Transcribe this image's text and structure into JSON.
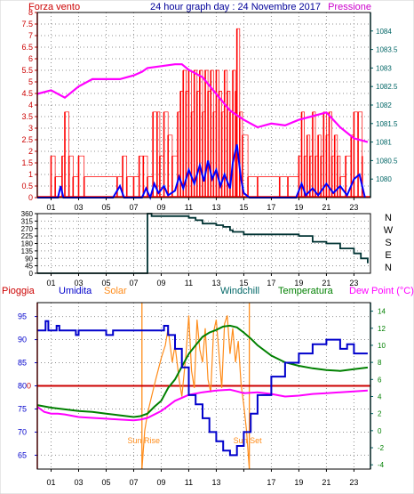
{
  "colors": {
    "wind": "#ff0000",
    "windavg": "#0000ff",
    "pressure": "#ff00ff",
    "dir": "#003333",
    "rain": "#cc0000",
    "humidity": "#0000cc",
    "solar": "#ff8c1a",
    "windchill": "#006666",
    "temp": "#008000",
    "dew": "#ff00ff",
    "frame_left": "#cc0000",
    "frame_right": "#006666"
  },
  "hour_ticks": [
    "01",
    "03",
    "05",
    "07",
    "09",
    "11",
    "13",
    "15",
    "17",
    "19",
    "21",
    "23"
  ],
  "header": {
    "left": "Forza vento",
    "center": "24 hour graph day : 24 Novembre 2017",
    "right": "Pressione"
  },
  "chart_data": [
    {
      "id": "wind-pressure",
      "type": "bar",
      "title": "24 hour graph day : 24 Novembre 2017",
      "left_axis": {
        "label": "Forza vento",
        "ticks": [
          "0",
          "0.5",
          "1",
          "1.5",
          "2",
          "2.5",
          "3",
          "3.5",
          "4",
          "4.5",
          "5",
          "5.5",
          "6",
          "6.5",
          "7",
          "7.5",
          "8"
        ],
        "range": [
          0,
          8
        ]
      },
      "right_axis": {
        "label": "Pressione",
        "ticks": [
          "1080",
          "1080.5",
          "1081",
          "1081.5",
          "1082",
          "1082.5",
          "1083",
          "1083.5",
          "1084"
        ],
        "range": [
          1079.5,
          1084.5
        ]
      },
      "x_range": [
        0,
        24.2
      ],
      "wind_gust_bars": [
        [
          1.0,
          1.8
        ],
        [
          1.3,
          0.9
        ],
        [
          1.8,
          1.8
        ],
        [
          2.0,
          3.7
        ],
        [
          2.3,
          1.8
        ],
        [
          2.6,
          0.9
        ],
        [
          3.0,
          1.8
        ],
        [
          3.4,
          0.9
        ],
        [
          5.8,
          0.9
        ],
        [
          6.2,
          1.8
        ],
        [
          6.5,
          0.9
        ],
        [
          7.0,
          0.9
        ],
        [
          7.4,
          1.8
        ],
        [
          7.7,
          1.8
        ],
        [
          8.0,
          0.9
        ],
        [
          8.4,
          3.7
        ],
        [
          8.7,
          3.7
        ],
        [
          8.9,
          1.8
        ],
        [
          9.2,
          3.7
        ],
        [
          9.5,
          2.7
        ],
        [
          9.8,
          1.8
        ],
        [
          10.2,
          3.7
        ],
        [
          10.4,
          4.6
        ],
        [
          10.6,
          5.5
        ],
        [
          10.8,
          4.6
        ],
        [
          11.0,
          5.5
        ],
        [
          11.2,
          3.7
        ],
        [
          11.4,
          5.5
        ],
        [
          11.6,
          4.6
        ],
        [
          11.8,
          5.5
        ],
        [
          12.0,
          3.7
        ],
        [
          12.2,
          5.5
        ],
        [
          12.4,
          4.6
        ],
        [
          12.6,
          5.5
        ],
        [
          12.8,
          3.7
        ],
        [
          13.0,
          5.5
        ],
        [
          13.2,
          4.6
        ],
        [
          13.4,
          3.7
        ],
        [
          13.6,
          5.5
        ],
        [
          13.8,
          4.6
        ],
        [
          14.0,
          3.7
        ],
        [
          14.2,
          5.5
        ],
        [
          14.4,
          4.6
        ],
        [
          14.5,
          7.3
        ],
        [
          14.7,
          3.7
        ],
        [
          14.9,
          2.7
        ],
        [
          15.3,
          0.9
        ],
        [
          16.0,
          0.9
        ],
        [
          17.6,
          0.9
        ],
        [
          18.2,
          0.9
        ],
        [
          19.0,
          1.8
        ],
        [
          19.2,
          3.7
        ],
        [
          19.4,
          1.8
        ],
        [
          19.6,
          2.7
        ],
        [
          19.8,
          1.8
        ],
        [
          20.0,
          3.7
        ],
        [
          20.2,
          1.8
        ],
        [
          20.4,
          2.7
        ],
        [
          20.6,
          1.8
        ],
        [
          20.8,
          3.7
        ],
        [
          21.0,
          2.7
        ],
        [
          21.2,
          3.7
        ],
        [
          21.4,
          1.8
        ],
        [
          21.6,
          2.7
        ],
        [
          21.8,
          1.8
        ],
        [
          22.0,
          0.9
        ],
        [
          22.4,
          1.8
        ],
        [
          22.8,
          2.7
        ],
        [
          23.0,
          3.7
        ],
        [
          23.3,
          3.7
        ],
        [
          23.6,
          1.8
        ]
      ],
      "wind_avg": [
        [
          0,
          0
        ],
        [
          1.5,
          0
        ],
        [
          1.7,
          0.5
        ],
        [
          1.9,
          0
        ],
        [
          5.5,
          0
        ],
        [
          6.0,
          0.5
        ],
        [
          6.3,
          0
        ],
        [
          7.6,
          0
        ],
        [
          7.9,
          0.4
        ],
        [
          8.2,
          0
        ],
        [
          8.5,
          0.6
        ],
        [
          8.8,
          0.2
        ],
        [
          9.2,
          0.5
        ],
        [
          9.5,
          0.1
        ],
        [
          10.0,
          0.3
        ],
        [
          10.3,
          0.9
        ],
        [
          10.6,
          0.4
        ],
        [
          11.0,
          1.2
        ],
        [
          11.4,
          0.6
        ],
        [
          11.8,
          1.4
        ],
        [
          12.1,
          0.7
        ],
        [
          12.4,
          1.6
        ],
        [
          12.7,
          0.8
        ],
        [
          13.0,
          1.2
        ],
        [
          13.3,
          0.5
        ],
        [
          13.6,
          1.0
        ],
        [
          14.0,
          0.4
        ],
        [
          14.2,
          1.5
        ],
        [
          14.5,
          2.3
        ],
        [
          14.8,
          0.8
        ],
        [
          15.0,
          0.2
        ],
        [
          15.4,
          0
        ],
        [
          18.8,
          0
        ],
        [
          19.2,
          0.6
        ],
        [
          19.5,
          0.1
        ],
        [
          20.0,
          0.4
        ],
        [
          20.4,
          0.1
        ],
        [
          21.0,
          0.6
        ],
        [
          21.5,
          0.2
        ],
        [
          22.0,
          0.5
        ],
        [
          22.5,
          0.1
        ],
        [
          23.0,
          0.8
        ],
        [
          23.4,
          1.0
        ],
        [
          23.8,
          0
        ]
      ],
      "pressure": [
        [
          0,
          1082.3
        ],
        [
          1,
          1082.4
        ],
        [
          2,
          1082.2
        ],
        [
          3,
          1082.5
        ],
        [
          4,
          1082.7
        ],
        [
          5,
          1082.7
        ],
        [
          6,
          1082.7
        ],
        [
          7,
          1082.8
        ],
        [
          7.6,
          1082.9
        ],
        [
          8,
          1083.0
        ],
        [
          9,
          1083.05
        ],
        [
          10,
          1083.1
        ],
        [
          10.5,
          1083.1
        ],
        [
          11,
          1082.95
        ],
        [
          12,
          1082.75
        ],
        [
          13,
          1082.3
        ],
        [
          14,
          1081.85
        ],
        [
          15,
          1081.6
        ],
        [
          16,
          1081.4
        ],
        [
          17,
          1081.5
        ],
        [
          18,
          1081.45
        ],
        [
          19,
          1081.6
        ],
        [
          20,
          1081.7
        ],
        [
          21,
          1081.8
        ],
        [
          22,
          1081.4
        ],
        [
          23,
          1081.1
        ],
        [
          24,
          1081.0
        ]
      ]
    },
    {
      "id": "wind-direction",
      "type": "line",
      "left_axis": {
        "ticks": [
          "0",
          "45",
          "90",
          "135",
          "180",
          "225",
          "270",
          "315",
          "360"
        ],
        "range": [
          0,
          360
        ]
      },
      "right_axis": {
        "ticks": [
          "N",
          "W",
          "S",
          "E",
          "N"
        ]
      },
      "x_range": [
        0,
        24.2
      ],
      "direction": [
        [
          0,
          0
        ],
        [
          8.0,
          0
        ],
        [
          8.0,
          360
        ],
        [
          8.3,
          345
        ],
        [
          11,
          335
        ],
        [
          11.5,
          320
        ],
        [
          12,
          300
        ],
        [
          13,
          290
        ],
        [
          13.5,
          280
        ],
        [
          14,
          260
        ],
        [
          14.2,
          250
        ],
        [
          15,
          235
        ],
        [
          19,
          225
        ],
        [
          20,
          190
        ],
        [
          21,
          180
        ],
        [
          22,
          150
        ],
        [
          23,
          120
        ],
        [
          23.5,
          90
        ],
        [
          24,
          60
        ]
      ]
    },
    {
      "id": "rain-humidity-temp",
      "type": "line",
      "labels": [
        "Pioggia",
        "Umidita",
        "Solar",
        "Windchill",
        "Temperatura",
        "Dew Point (°C)"
      ],
      "annotations": [
        "Sun Rise",
        "Sun Set"
      ],
      "left_axis": {
        "ticks": [
          "65",
          "70",
          "75",
          "80",
          "85",
          "90",
          "95"
        ],
        "range": [
          62,
          98
        ]
      },
      "right_axis": {
        "ticks": [
          "-4",
          "-2",
          "0",
          "2",
          "4",
          "6",
          "8",
          "10",
          "12",
          "14"
        ],
        "range": [
          -4.5,
          15
        ]
      },
      "rain_marker": "0",
      "x_range": [
        0,
        24.2
      ],
      "sunrise_hour": 7.6,
      "sunset_hour": 15.4,
      "humidity": [
        [
          0,
          92
        ],
        [
          0.5,
          92
        ],
        [
          0.6,
          94
        ],
        [
          0.8,
          92
        ],
        [
          1.2,
          92
        ],
        [
          1.4,
          93
        ],
        [
          1.6,
          92
        ],
        [
          2.5,
          92
        ],
        [
          2.8,
          91
        ],
        [
          3.0,
          92
        ],
        [
          4.5,
          92
        ],
        [
          5.0,
          91
        ],
        [
          5.5,
          92
        ],
        [
          9.0,
          92
        ],
        [
          9.2,
          93
        ],
        [
          9.5,
          91
        ],
        [
          10.0,
          88
        ],
        [
          10.5,
          84
        ],
        [
          11.0,
          78
        ],
        [
          11.5,
          76
        ],
        [
          12.0,
          73
        ],
        [
          12.5,
          70
        ],
        [
          13.0,
          68
        ],
        [
          13.5,
          66
        ],
        [
          14.0,
          65
        ],
        [
          14.5,
          67
        ],
        [
          15.0,
          70
        ],
        [
          15.5,
          74
        ],
        [
          16.0,
          78
        ],
        [
          17.0,
          82
        ],
        [
          18.0,
          85
        ],
        [
          19.0,
          87
        ],
        [
          20.0,
          89
        ],
        [
          21.0,
          90
        ],
        [
          21.5,
          90
        ],
        [
          22.0,
          88
        ],
        [
          22.5,
          89
        ],
        [
          23.0,
          87
        ],
        [
          24.0,
          87
        ]
      ],
      "temperature": [
        [
          0,
          3.0
        ],
        [
          1,
          2.7
        ],
        [
          2,
          2.5
        ],
        [
          3,
          2.3
        ],
        [
          4,
          2.2
        ],
        [
          5,
          2.0
        ],
        [
          6,
          1.8
        ],
        [
          7,
          1.6
        ],
        [
          7.5,
          1.7
        ],
        [
          8,
          2.0
        ],
        [
          8.5,
          2.8
        ],
        [
          9,
          3.5
        ],
        [
          9.5,
          5.0
        ],
        [
          10,
          6.0
        ],
        [
          10.5,
          7.5
        ],
        [
          11,
          9.0
        ],
        [
          11.5,
          10.0
        ],
        [
          12,
          11.0
        ],
        [
          12.5,
          11.5
        ],
        [
          13,
          11.8
        ],
        [
          13.5,
          12.2
        ],
        [
          14,
          12.3
        ],
        [
          14.5,
          12.1
        ],
        [
          15,
          11.5
        ],
        [
          15.5,
          10.8
        ],
        [
          16,
          10.0
        ],
        [
          17,
          8.8
        ],
        [
          18,
          8.0
        ],
        [
          19,
          7.6
        ],
        [
          20,
          7.3
        ],
        [
          21,
          7.1
        ],
        [
          22,
          7.0
        ],
        [
          23,
          7.2
        ],
        [
          24,
          7.4
        ]
      ],
      "dew_point": [
        [
          0,
          2.8
        ],
        [
          0.5,
          2.2
        ],
        [
          1,
          2.0
        ],
        [
          1.5,
          2.0
        ],
        [
          2,
          1.9
        ],
        [
          3,
          1.6
        ],
        [
          4,
          1.5
        ],
        [
          5,
          1.4
        ],
        [
          6,
          1.3
        ],
        [
          7,
          1.2
        ],
        [
          7.5,
          1.3
        ],
        [
          8,
          1.5
        ],
        [
          9,
          2.3
        ],
        [
          10,
          3.5
        ],
        [
          11,
          4.2
        ],
        [
          12,
          4.5
        ],
        [
          13,
          4.7
        ],
        [
          14,
          4.8
        ],
        [
          14.5,
          4.6
        ],
        [
          15,
          4.4
        ],
        [
          16,
          4.5
        ],
        [
          17,
          4.3
        ],
        [
          18,
          4.0
        ],
        [
          19,
          4.1
        ],
        [
          20,
          4.3
        ],
        [
          21,
          4.4
        ],
        [
          22,
          4.5
        ],
        [
          23,
          4.6
        ],
        [
          24,
          4.7
        ]
      ],
      "solar": [
        [
          7.6,
          -4.5
        ],
        [
          7.8,
          0.0
        ],
        [
          8.0,
          2.0
        ],
        [
          8.3,
          4.0
        ],
        [
          8.6,
          6.0
        ],
        [
          9.0,
          8.5
        ],
        [
          9.3,
          10.0
        ],
        [
          9.5,
          12.0
        ],
        [
          9.8,
          8.0
        ],
        [
          10.0,
          10.0
        ],
        [
          10.3,
          6.0
        ],
        [
          10.5,
          4.0
        ],
        [
          10.8,
          9.0
        ],
        [
          11.0,
          13.5
        ],
        [
          11.2,
          7.0
        ],
        [
          11.4,
          5.0
        ],
        [
          11.6,
          13.0
        ],
        [
          11.8,
          9.5
        ],
        [
          12.0,
          8.0
        ],
        [
          12.2,
          12.0
        ],
        [
          12.4,
          6.0
        ],
        [
          12.6,
          4.5
        ],
        [
          12.8,
          11.5
        ],
        [
          13.0,
          13.0
        ],
        [
          13.2,
          9.0
        ],
        [
          13.4,
          5.0
        ],
        [
          13.6,
          12.5
        ],
        [
          13.8,
          13.5
        ],
        [
          14.0,
          9.0
        ],
        [
          14.2,
          12.0
        ],
        [
          14.4,
          8.0
        ],
        [
          14.6,
          10.5
        ],
        [
          14.8,
          5.5
        ],
        [
          15.0,
          3.0
        ],
        [
          15.2,
          0.0
        ],
        [
          15.4,
          -4.5
        ]
      ]
    }
  ]
}
